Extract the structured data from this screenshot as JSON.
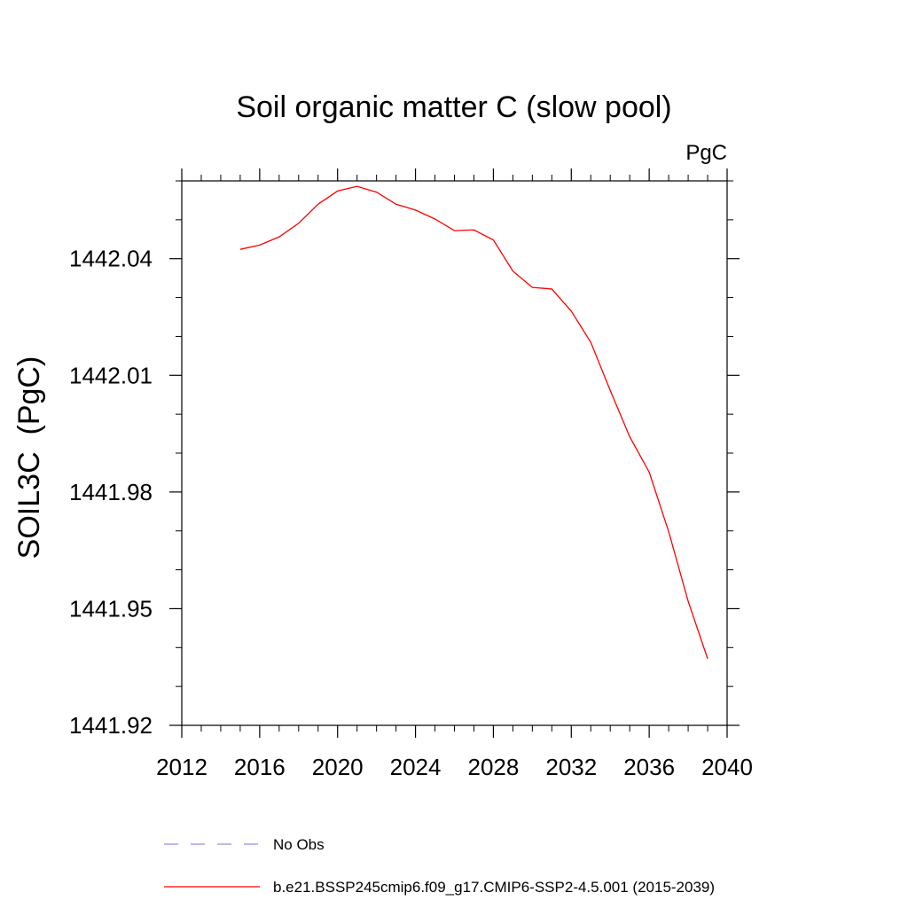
{
  "chart_data": {
    "type": "line",
    "title": "Soil organic matter C (slow pool)",
    "units_label": "PgC",
    "ylabel": "SOIL3C  (PgC)",
    "xlabel": "",
    "xlim": [
      2012,
      2040
    ],
    "ylim": [
      1441.92,
      1442.06
    ],
    "x_ticks": [
      2012,
      2016,
      2020,
      2024,
      2028,
      2032,
      2036,
      2040
    ],
    "x_tick_labels": [
      "2012",
      "2016",
      "2020",
      "2024",
      "2028",
      "2032",
      "2036",
      "2040"
    ],
    "y_ticks": [
      1441.92,
      1441.95,
      1441.98,
      1442.01,
      1442.04
    ],
    "y_tick_labels": [
      "1441.92",
      "1441.95",
      "1441.98",
      "1442.01",
      "1442.04"
    ],
    "series": [
      {
        "name": "b.e21.BSSP245cmip6.f09_g17.CMIP6-SSP2-4.5.001 (2015-2039)",
        "color": "#ff0000",
        "x": [
          2015,
          2016,
          2017,
          2018,
          2019,
          2020,
          2021,
          2022,
          2023,
          2024,
          2025,
          2026,
          2027,
          2028,
          2029,
          2030,
          2031,
          2032,
          2033,
          2034,
          2035,
          2036,
          2037,
          2038,
          2039
        ],
        "y": [
          1442.0424,
          1442.0435,
          1442.0456,
          1442.0491,
          1442.054,
          1442.0574,
          1442.0586,
          1442.0571,
          1442.054,
          1442.0525,
          1442.0502,
          1442.0472,
          1442.0474,
          1442.0448,
          1442.0368,
          1442.0326,
          1442.0322,
          1442.0265,
          1442.0185,
          1442.0061,
          1441.9942,
          1441.9851,
          1441.9698,
          1441.9519,
          1441.9371
        ]
      }
    ],
    "legend": {
      "placement": "bottom",
      "entries": [
        {
          "label": "No Obs",
          "color": "#9090e0",
          "style": "dashed"
        },
        {
          "label": "b.e21.BSSP245cmip6.f09_g17.CMIP6-SSP2-4.5.001 (2015-2039)",
          "color": "#ff0000",
          "style": "solid"
        }
      ]
    },
    "grid": false
  }
}
